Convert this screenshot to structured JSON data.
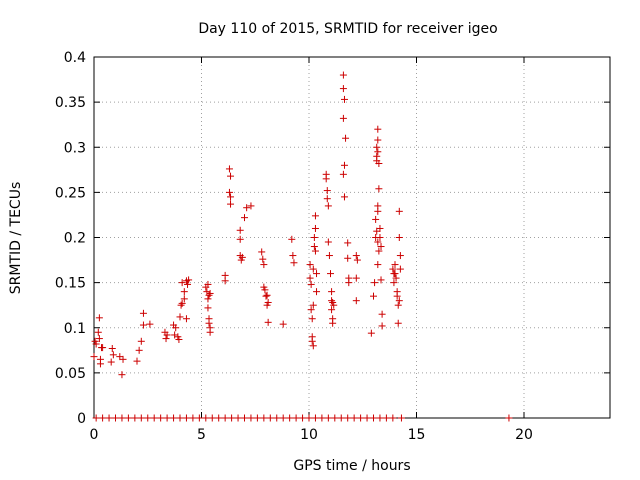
{
  "chart_data": {
    "type": "scatter",
    "title": "Day 110 of 2015, SRMTID for receiver igeo",
    "xlabel": "GPS time / hours",
    "ylabel": "SRMTID / TECUs",
    "xlim": [
      0,
      24
    ],
    "ylim": [
      0,
      0.4
    ],
    "xticks": [
      0,
      5,
      10,
      15,
      20
    ],
    "yticks": [
      0,
      0.05,
      0.1,
      0.15,
      0.2,
      0.25,
      0.3,
      0.35,
      0.4
    ],
    "xtick_labels": [
      "0",
      "5",
      "10",
      "15",
      "20"
    ],
    "ytick_labels": [
      "0",
      "0.05",
      "0.1",
      "0.15",
      "0.2",
      "0.25",
      "0.3",
      "0.35",
      "0.4"
    ],
    "grid": true,
    "marker": "+",
    "color": "#cc0000",
    "series": [
      {
        "name": "SRMTID",
        "points": [
          [
            0.0,
            0.068
          ],
          [
            0.05,
            0.085
          ],
          [
            0.1,
            0.082
          ],
          [
            0.2,
            0.095
          ],
          [
            0.25,
            0.111
          ],
          [
            0.3,
            0.065
          ],
          [
            0.3,
            0.06
          ],
          [
            0.35,
            0.078
          ],
          [
            0.25,
            0.088
          ],
          [
            0.4,
            0.078
          ],
          [
            0.8,
            0.062
          ],
          [
            0.85,
            0.077
          ],
          [
            0.9,
            0.07
          ],
          [
            1.2,
            0.068
          ],
          [
            1.3,
            0.048
          ],
          [
            1.35,
            0.065
          ],
          [
            2.0,
            0.063
          ],
          [
            2.1,
            0.075
          ],
          [
            2.2,
            0.085
          ],
          [
            2.3,
            0.103
          ],
          [
            2.3,
            0.116
          ],
          [
            2.6,
            0.104
          ],
          [
            3.3,
            0.095
          ],
          [
            3.35,
            0.088
          ],
          [
            3.4,
            0.092
          ],
          [
            3.7,
            0.103
          ],
          [
            3.75,
            0.092
          ],
          [
            3.8,
            0.1
          ],
          [
            3.9,
            0.09
          ],
          [
            3.95,
            0.087
          ],
          [
            4.0,
            0.112
          ],
          [
            4.05,
            0.125
          ],
          [
            4.1,
            0.127
          ],
          [
            4.1,
            0.15
          ],
          [
            4.2,
            0.14
          ],
          [
            4.3,
            0.152
          ],
          [
            4.35,
            0.148
          ],
          [
            4.4,
            0.153
          ],
          [
            4.2,
            0.132
          ],
          [
            4.3,
            0.11
          ],
          [
            5.2,
            0.145
          ],
          [
            5.25,
            0.14
          ],
          [
            5.3,
            0.132
          ],
          [
            5.3,
            0.122
          ],
          [
            5.35,
            0.11
          ],
          [
            5.4,
            0.1
          ],
          [
            5.4,
            0.095
          ],
          [
            5.35,
            0.136
          ],
          [
            5.4,
            0.138
          ],
          [
            5.35,
            0.105
          ],
          [
            5.3,
            0.148
          ],
          [
            6.1,
            0.152
          ],
          [
            6.1,
            0.158
          ],
          [
            6.3,
            0.276
          ],
          [
            6.35,
            0.268
          ],
          [
            6.3,
            0.25
          ],
          [
            6.35,
            0.245
          ],
          [
            6.35,
            0.237
          ],
          [
            6.8,
            0.208
          ],
          [
            6.8,
            0.198
          ],
          [
            6.8,
            0.18
          ],
          [
            6.85,
            0.175
          ],
          [
            6.9,
            0.178
          ],
          [
            7.0,
            0.222
          ],
          [
            7.1,
            0.233
          ],
          [
            7.3,
            0.235
          ],
          [
            7.8,
            0.184
          ],
          [
            7.85,
            0.176
          ],
          [
            7.9,
            0.17
          ],
          [
            7.9,
            0.145
          ],
          [
            7.95,
            0.142
          ],
          [
            8.0,
            0.135
          ],
          [
            8.05,
            0.136
          ],
          [
            8.05,
            0.125
          ],
          [
            8.1,
            0.106
          ],
          [
            8.1,
            0.128
          ],
          [
            8.8,
            0.104
          ],
          [
            9.2,
            0.198
          ],
          [
            9.25,
            0.18
          ],
          [
            9.3,
            0.172
          ],
          [
            10.05,
            0.17
          ],
          [
            10.05,
            0.155
          ],
          [
            10.1,
            0.148
          ],
          [
            10.1,
            0.12
          ],
          [
            10.15,
            0.11
          ],
          [
            10.15,
            0.09
          ],
          [
            10.15,
            0.085
          ],
          [
            10.2,
            0.08
          ],
          [
            10.2,
            0.125
          ],
          [
            10.2,
            0.165
          ],
          [
            10.25,
            0.19
          ],
          [
            10.25,
            0.2
          ],
          [
            10.3,
            0.21
          ],
          [
            10.3,
            0.224
          ],
          [
            10.3,
            0.185
          ],
          [
            10.35,
            0.16
          ],
          [
            10.35,
            0.14
          ],
          [
            10.8,
            0.27
          ],
          [
            10.8,
            0.265
          ],
          [
            10.85,
            0.252
          ],
          [
            10.85,
            0.243
          ],
          [
            10.9,
            0.235
          ],
          [
            10.9,
            0.195
          ],
          [
            10.95,
            0.18
          ],
          [
            11.0,
            0.16
          ],
          [
            11.05,
            0.14
          ],
          [
            11.05,
            0.13
          ],
          [
            11.05,
            0.12
          ],
          [
            11.1,
            0.11
          ],
          [
            11.1,
            0.105
          ],
          [
            11.1,
            0.128
          ],
          [
            11.15,
            0.125
          ],
          [
            11.6,
            0.38
          ],
          [
            11.6,
            0.365
          ],
          [
            11.65,
            0.353
          ],
          [
            11.6,
            0.332
          ],
          [
            11.7,
            0.31
          ],
          [
            11.65,
            0.28
          ],
          [
            11.6,
            0.27
          ],
          [
            11.65,
            0.245
          ],
          [
            11.8,
            0.194
          ],
          [
            11.8,
            0.177
          ],
          [
            11.85,
            0.155
          ],
          [
            11.85,
            0.15
          ],
          [
            12.2,
            0.18
          ],
          [
            12.25,
            0.175
          ],
          [
            12.2,
            0.155
          ],
          [
            12.2,
            0.13
          ],
          [
            12.9,
            0.094
          ],
          [
            13.0,
            0.135
          ],
          [
            13.05,
            0.15
          ],
          [
            13.1,
            0.2
          ],
          [
            13.1,
            0.22
          ],
          [
            13.15,
            0.3
          ],
          [
            13.15,
            0.29
          ],
          [
            13.15,
            0.285
          ],
          [
            13.2,
            0.32
          ],
          [
            13.2,
            0.308
          ],
          [
            13.2,
            0.295
          ],
          [
            13.25,
            0.282
          ],
          [
            13.25,
            0.254
          ],
          [
            13.2,
            0.235
          ],
          [
            13.2,
            0.229
          ],
          [
            13.15,
            0.207
          ],
          [
            13.2,
            0.195
          ],
          [
            13.25,
            0.185
          ],
          [
            13.2,
            0.17
          ],
          [
            13.3,
            0.2
          ],
          [
            13.3,
            0.21
          ],
          [
            13.35,
            0.19
          ],
          [
            13.35,
            0.153
          ],
          [
            13.4,
            0.115
          ],
          [
            13.4,
            0.102
          ],
          [
            13.9,
            0.165
          ],
          [
            13.95,
            0.15
          ],
          [
            13.95,
            0.16
          ],
          [
            14.0,
            0.16
          ],
          [
            14.0,
            0.17
          ],
          [
            14.05,
            0.155
          ],
          [
            14.1,
            0.14
          ],
          [
            14.1,
            0.135
          ],
          [
            14.15,
            0.125
          ],
          [
            14.15,
            0.105
          ],
          [
            14.2,
            0.229
          ],
          [
            14.2,
            0.2
          ],
          [
            14.25,
            0.18
          ],
          [
            14.25,
            0.165
          ],
          [
            14.2,
            0.13
          ]
        ]
      },
      {
        "name": "zero-level",
        "points": [
          [
            0.1,
            0
          ],
          [
            0.4,
            0
          ],
          [
            0.7,
            0
          ],
          [
            1.0,
            0
          ],
          [
            1.3,
            0
          ],
          [
            1.6,
            0
          ],
          [
            1.9,
            0
          ],
          [
            2.2,
            0
          ],
          [
            2.5,
            0
          ],
          [
            2.8,
            0
          ],
          [
            3.1,
            0
          ],
          [
            3.4,
            0
          ],
          [
            3.7,
            0
          ],
          [
            4.0,
            0
          ],
          [
            4.3,
            0
          ],
          [
            4.6,
            0
          ],
          [
            4.9,
            0
          ],
          [
            5.2,
            0
          ],
          [
            5.5,
            0
          ],
          [
            5.8,
            0
          ],
          [
            6.1,
            0
          ],
          [
            6.4,
            0
          ],
          [
            6.7,
            0
          ],
          [
            7.0,
            0
          ],
          [
            7.3,
            0
          ],
          [
            7.6,
            0
          ],
          [
            7.9,
            0
          ],
          [
            8.2,
            0
          ],
          [
            8.5,
            0
          ],
          [
            8.8,
            0
          ],
          [
            9.1,
            0
          ],
          [
            9.4,
            0
          ],
          [
            9.7,
            0
          ],
          [
            10.0,
            0
          ],
          [
            10.3,
            0
          ],
          [
            10.6,
            0
          ],
          [
            10.9,
            0
          ],
          [
            11.2,
            0
          ],
          [
            11.5,
            0
          ],
          [
            11.8,
            0
          ],
          [
            12.1,
            0
          ],
          [
            12.4,
            0
          ],
          [
            12.7,
            0
          ],
          [
            13.0,
            0
          ],
          [
            13.3,
            0
          ],
          [
            13.6,
            0
          ],
          [
            13.9,
            0
          ],
          [
            14.3,
            0
          ],
          [
            19.3,
            0
          ]
        ]
      }
    ]
  }
}
